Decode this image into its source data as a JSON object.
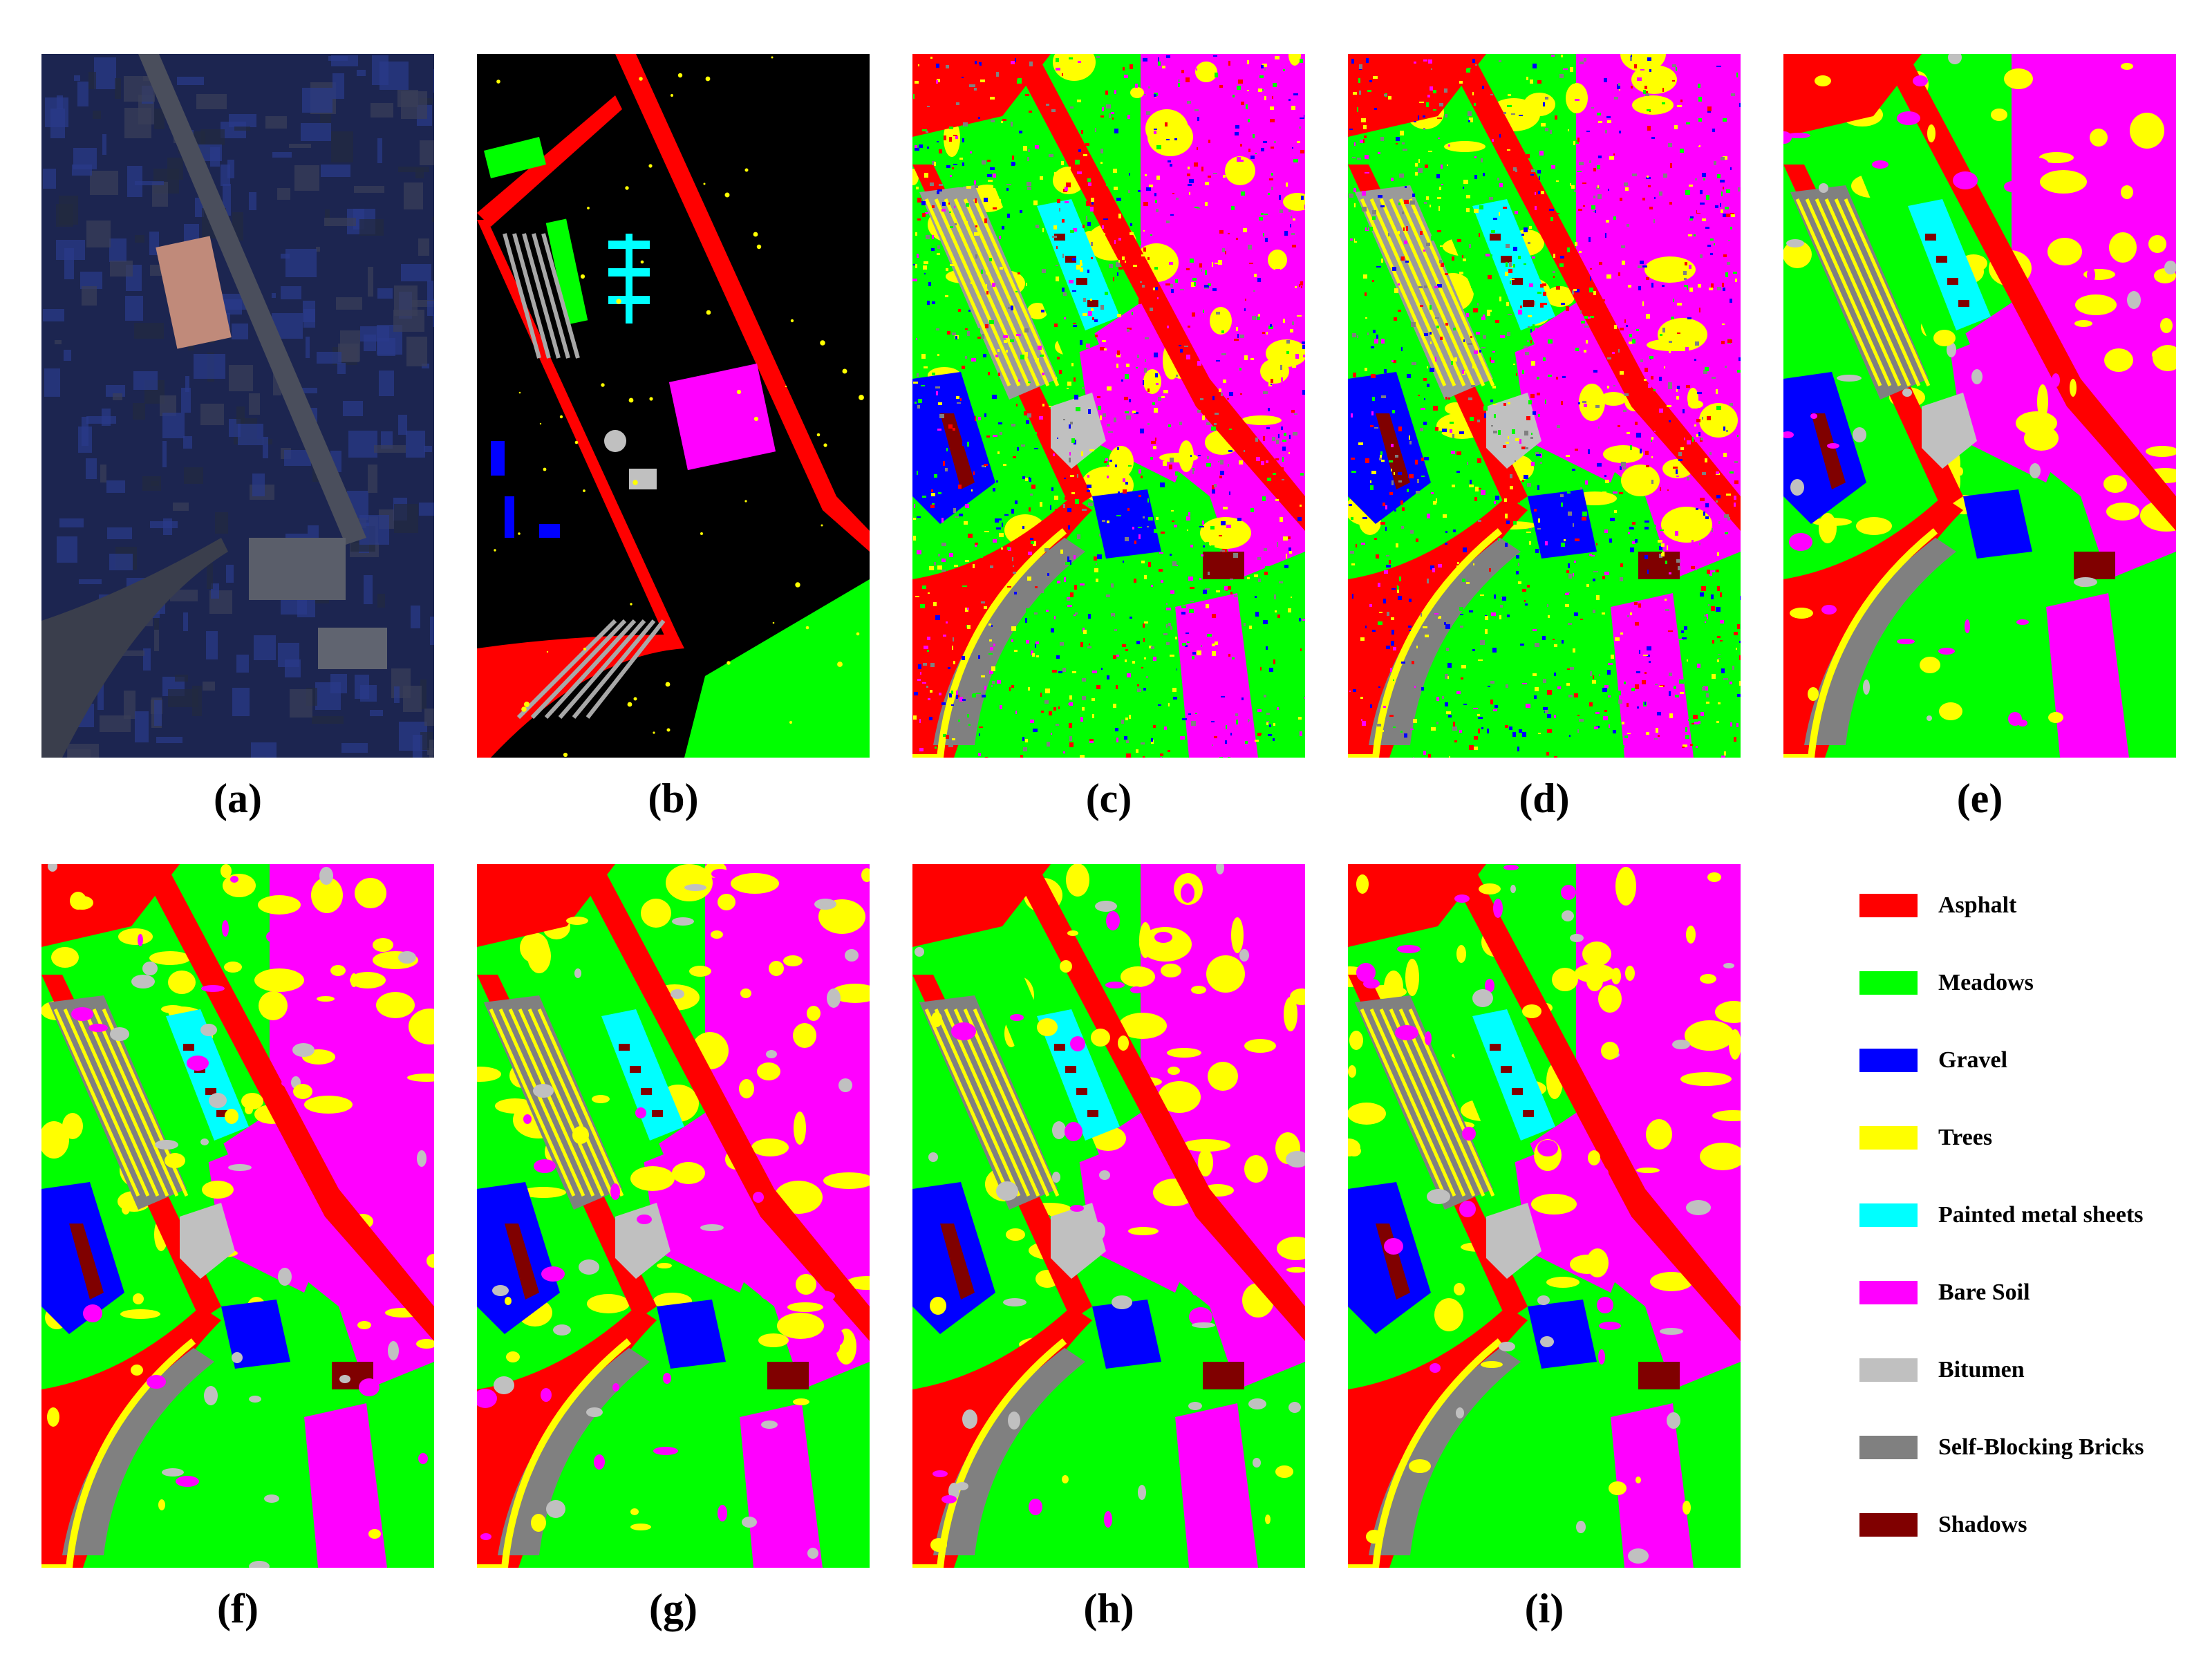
{
  "panels": [
    {
      "id": "a",
      "label": "(a)",
      "kind": "false-color"
    },
    {
      "id": "b",
      "label": "(b)",
      "kind": "ground-truth"
    },
    {
      "id": "c",
      "label": "(c)",
      "kind": "noisy-map"
    },
    {
      "id": "d",
      "label": "(d)",
      "kind": "noisy-map"
    },
    {
      "id": "e",
      "label": "(e)",
      "kind": "smooth-map"
    },
    {
      "id": "f",
      "label": "(f)",
      "kind": "smooth-map"
    },
    {
      "id": "g",
      "label": "(g)",
      "kind": "smooth-map"
    },
    {
      "id": "h",
      "label": "(h)",
      "kind": "smooth-map"
    },
    {
      "id": "i",
      "label": "(i)",
      "kind": "smooth-map"
    }
  ],
  "legend": [
    {
      "label": "Asphalt",
      "color": "#ff0000"
    },
    {
      "label": "Meadows",
      "color": "#00ff00"
    },
    {
      "label": "Gravel",
      "color": "#0000ff"
    },
    {
      "label": "Trees",
      "color": "#ffff00"
    },
    {
      "label": "Painted metal sheets",
      "color": "#00ffff"
    },
    {
      "label": "Bare Soil",
      "color": "#ff00ff"
    },
    {
      "label": "Bitumen",
      "color": "#c0c0c0"
    },
    {
      "label": "Self-Blocking Bricks",
      "color": "#808080"
    },
    {
      "label": "Shadows",
      "color": "#800000"
    }
  ]
}
